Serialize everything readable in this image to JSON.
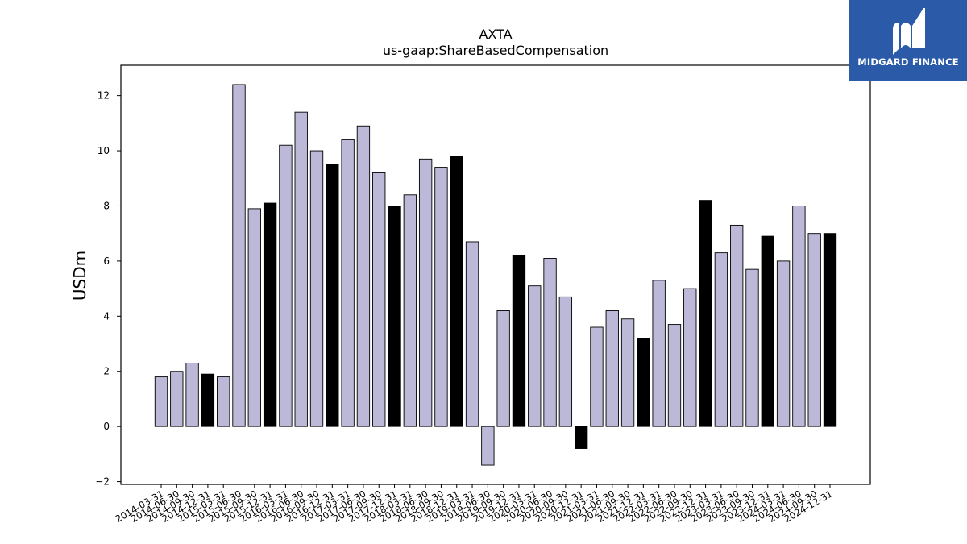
{
  "chart_data": {
    "type": "bar",
    "title": "AXTA",
    "subtitle": "us-gaap:ShareBasedCompensation",
    "ylabel": "USDm",
    "xlabel": "",
    "ylim": [
      -2.1,
      13.1
    ],
    "yticks": [
      -2,
      0,
      2,
      4,
      6,
      8,
      10,
      12
    ],
    "grid": false,
    "categories": [
      "2014-03-31",
      "2014-06-30",
      "2014-09-30",
      "2014-12-31",
      "2015-03-31",
      "2015-06-30",
      "2015-09-30",
      "2015-12-31",
      "2016-03-31",
      "2016-06-30",
      "2016-09-30",
      "2016-12-31",
      "2017-03-31",
      "2017-06-30",
      "2017-09-30",
      "2017-12-31",
      "2018-03-31",
      "2018-06-30",
      "2018-09-30",
      "2018-12-31",
      "2019-03-31",
      "2019-06-30",
      "2019-09-30",
      "2019-12-31",
      "2020-03-31",
      "2020-06-30",
      "2020-09-30",
      "2020-12-31",
      "2021-03-31",
      "2021-06-30",
      "2021-09-30",
      "2021-12-31",
      "2022-03-31",
      "2022-06-30",
      "2022-09-30",
      "2022-12-31",
      "2023-03-31",
      "2023-06-30",
      "2023-09-30",
      "2023-12-31",
      "2024-03-31",
      "2024-06-30",
      "2024-09-30",
      "2024-12-31"
    ],
    "values": [
      1.8,
      2.0,
      2.3,
      1.9,
      1.8,
      12.4,
      7.9,
      8.1,
      10.2,
      11.4,
      10.0,
      9.5,
      10.4,
      10.9,
      9.2,
      8.0,
      8.4,
      9.7,
      9.4,
      9.8,
      6.7,
      -1.4,
      4.2,
      6.2,
      5.1,
      6.1,
      4.7,
      -0.8,
      3.6,
      4.2,
      3.9,
      3.2,
      5.3,
      3.7,
      5.0,
      8.2,
      6.3,
      7.3,
      5.7,
      6.9,
      6.0,
      8.0,
      7.0,
      7.0
    ],
    "highlight": [
      false,
      false,
      false,
      true,
      false,
      false,
      false,
      true,
      false,
      false,
      false,
      true,
      false,
      false,
      false,
      true,
      false,
      false,
      false,
      true,
      false,
      false,
      false,
      true,
      false,
      false,
      false,
      true,
      false,
      false,
      false,
      true,
      false,
      false,
      false,
      true,
      false,
      false,
      false,
      true,
      false,
      false,
      false,
      true
    ],
    "colors": {
      "bar": "#bcb8d8",
      "highlight_bar": "#000000",
      "edge": "#000000"
    }
  },
  "logo": {
    "text": "MIDGARD FINANCE",
    "background": "#2b5aa9",
    "icon": "midgard-logo-icon"
  }
}
